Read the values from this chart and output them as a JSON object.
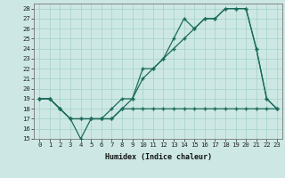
{
  "title": "",
  "xlabel": "Humidex (Indice chaleur)",
  "bg_color": "#cde8e4",
  "grid_color": "#a8d4cc",
  "line_color": "#1a6b5a",
  "xlim": [
    -0.5,
    23.5
  ],
  "ylim": [
    15,
    28.5
  ],
  "yticks": [
    15,
    16,
    17,
    18,
    19,
    20,
    21,
    22,
    23,
    24,
    25,
    26,
    27,
    28
  ],
  "xticks": [
    0,
    1,
    2,
    3,
    4,
    5,
    6,
    7,
    8,
    9,
    10,
    11,
    12,
    13,
    14,
    15,
    16,
    17,
    18,
    19,
    20,
    21,
    22,
    23
  ],
  "line1_x": [
    0,
    1,
    2,
    3,
    4,
    5,
    6,
    7,
    8,
    9,
    10,
    11,
    12,
    13,
    14,
    15,
    16,
    17,
    18,
    19,
    20,
    21,
    22,
    23
  ],
  "line1_y": [
    19,
    19,
    18,
    17,
    15,
    17,
    17,
    18,
    19,
    19,
    22,
    22,
    23,
    25,
    27,
    26,
    27,
    27,
    28,
    28,
    28,
    24,
    19,
    18
  ],
  "line2_x": [
    0,
    1,
    2,
    3,
    4,
    5,
    6,
    7,
    8,
    9,
    10,
    11,
    12,
    13,
    14,
    15,
    16,
    17,
    18,
    19,
    20,
    21,
    22,
    23
  ],
  "line2_y": [
    19,
    19,
    18,
    17,
    17,
    17,
    17,
    17,
    18,
    19,
    21,
    22,
    23,
    24,
    25,
    26,
    27,
    27,
    28,
    28,
    28,
    24,
    19,
    18
  ],
  "line3_x": [
    0,
    1,
    2,
    3,
    4,
    5,
    6,
    7,
    8,
    9,
    10,
    11,
    12,
    13,
    14,
    15,
    16,
    17,
    18,
    19,
    20,
    21,
    22,
    23
  ],
  "line3_y": [
    19,
    19,
    18,
    17,
    17,
    17,
    17,
    17,
    18,
    18,
    18,
    18,
    18,
    18,
    18,
    18,
    18,
    18,
    18,
    18,
    18,
    18,
    18,
    18
  ],
  "xlabel_fontsize": 6.0,
  "tick_fontsize": 5.2,
  "linewidth": 0.9,
  "markersize": 3.5,
  "markeredgewidth": 1.0
}
